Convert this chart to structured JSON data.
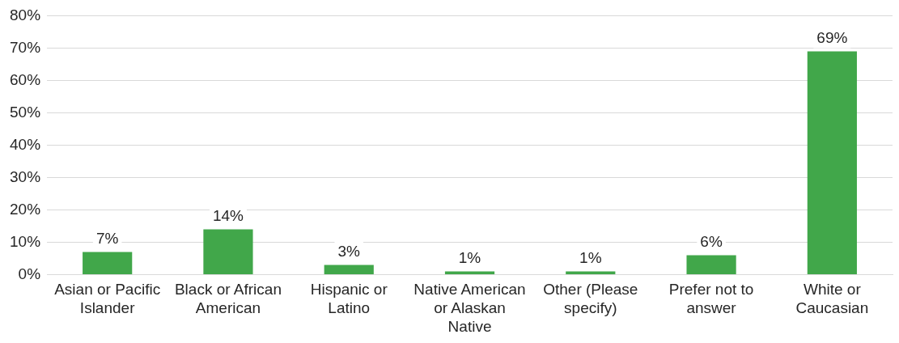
{
  "chart_data": {
    "type": "bar",
    "categories": [
      "Asian or Pacific Islander",
      "Black or African American",
      "Hispanic or Latino",
      "Native American or Alaskan Native",
      "Other (Please specify)",
      "Prefer not to answer",
      "White or Caucasian"
    ],
    "values": [
      7,
      14,
      3,
      1,
      1,
      6,
      69
    ],
    "value_labels": [
      "7%",
      "14%",
      "3%",
      "1%",
      "1%",
      "6%",
      "69%"
    ],
    "color": "#41a74a",
    "ylim": [
      0,
      80
    ],
    "yticks": [
      {
        "value": 0,
        "label": "0%"
      },
      {
        "value": 10,
        "label": "10%"
      },
      {
        "value": 20,
        "label": "20%"
      },
      {
        "value": 30,
        "label": "30%"
      },
      {
        "value": 40,
        "label": "40%"
      },
      {
        "value": 50,
        "label": "50%"
      },
      {
        "value": 60,
        "label": "60%"
      },
      {
        "value": 70,
        "label": "70%"
      },
      {
        "value": 80,
        "label": "80%"
      }
    ],
    "grid": "y",
    "legend": false
  }
}
